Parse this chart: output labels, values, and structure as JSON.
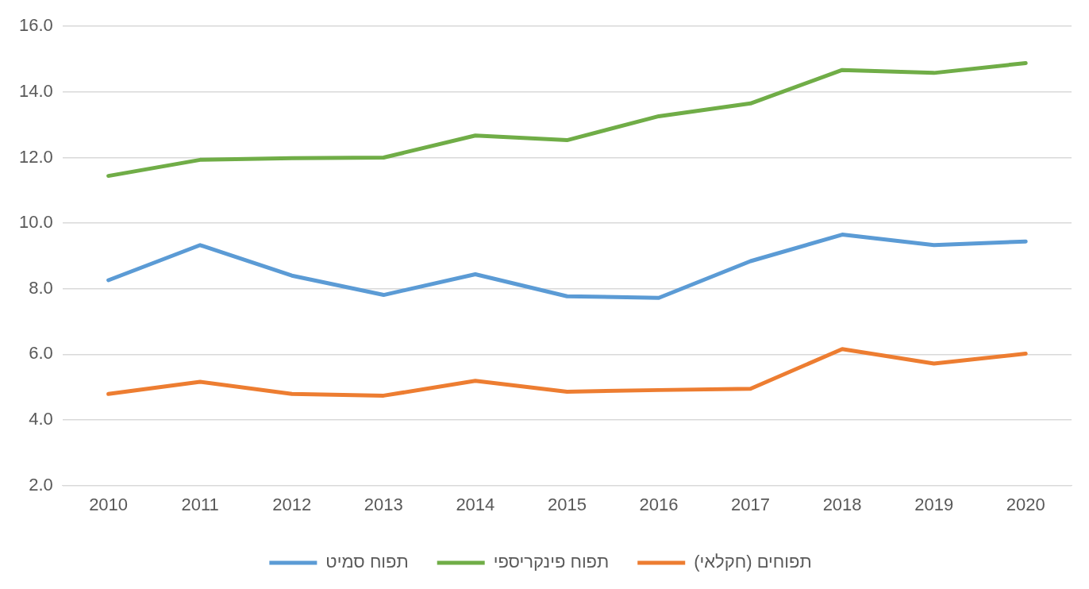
{
  "chart_data": {
    "type": "line",
    "categories": [
      "2010",
      "2011",
      "2012",
      "2013",
      "2014",
      "2015",
      "2016",
      "2017",
      "2018",
      "2019",
      "2020"
    ],
    "series": [
      {
        "name": "תפוח סמיט",
        "color": "#5b9bd5",
        "values": [
          8.26,
          9.33,
          8.4,
          7.81,
          8.44,
          7.77,
          7.72,
          8.84,
          9.65,
          9.33,
          9.44
        ]
      },
      {
        "name": "תפוח פינקריספי",
        "color": "#70ad47",
        "values": [
          11.44,
          11.93,
          11.98,
          12.0,
          12.67,
          12.53,
          13.26,
          13.65,
          14.67,
          14.58,
          14.88
        ]
      },
      {
        "name": "תפוחים (חקלאי)",
        "color": "#ed7d31",
        "values": [
          4.79,
          5.16,
          4.79,
          4.74,
          5.19,
          4.86,
          4.91,
          4.95,
          6.16,
          5.72,
          6.02
        ]
      }
    ],
    "ylim": [
      2,
      16
    ],
    "yticks": [
      {
        "value": 2,
        "label": "2.0"
      },
      {
        "value": 4,
        "label": "4.0"
      },
      {
        "value": 6,
        "label": "6.0"
      },
      {
        "value": 8,
        "label": "8.0"
      },
      {
        "value": 10,
        "label": "10.0"
      },
      {
        "value": 12,
        "label": "12.0"
      },
      {
        "value": 14,
        "label": "14.0"
      },
      {
        "value": 16,
        "label": "16.0"
      }
    ],
    "grid": "y",
    "legend": "bottom",
    "marker": "none",
    "line_style": "solid"
  }
}
